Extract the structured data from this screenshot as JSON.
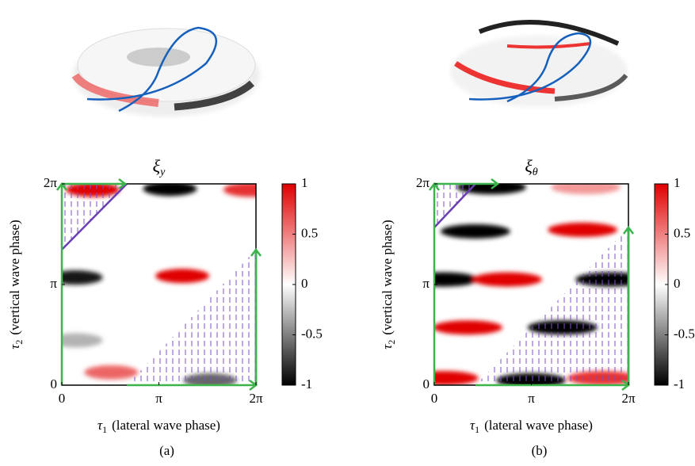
{
  "chart_data": [
    {
      "type": "heatmap",
      "title": {
        "symbol": "ξ",
        "subscript": "y"
      },
      "xlabel": {
        "symbol": "τ",
        "subscript": "1",
        "text": "(lateral wave phase)"
      },
      "ylabel": {
        "symbol": "τ",
        "subscript": "2",
        "text": "(vertical wave phase)"
      },
      "caption": "(a)",
      "xlim": [
        0,
        6.28319
      ],
      "ylim": [
        0,
        6.28319
      ],
      "xticks": [
        0,
        {
          "value": 3.14159,
          "label": "π"
        },
        {
          "value": 6.28319,
          "label": "2π"
        }
      ],
      "yticks": [
        0,
        {
          "value": 3.14159,
          "label": "π"
        },
        {
          "value": 6.28319,
          "label": "2π"
        }
      ],
      "clim": [
        -1,
        1
      ],
      "cticks": [
        -1,
        -0.5,
        0,
        0.5,
        1
      ],
      "x": [
        1.0,
        3.5,
        6.1,
        0.45,
        3.9,
        0.45,
        1.6,
        4.8
      ],
      "y": [
        6.1,
        6.13,
        6.1,
        3.36,
        3.41,
        1.4,
        0.4,
        0.15
      ],
      "values": [
        1,
        -1,
        0.8,
        -0.9,
        1,
        -0.3,
        0.6,
        -0.6
      ]
    },
    {
      "type": "heatmap",
      "title": {
        "symbol": "ξ",
        "subscript": "θ"
      },
      "xlabel": {
        "symbol": "τ",
        "subscript": "1",
        "text": "(lateral wave phase)"
      },
      "ylabel": {
        "symbol": "τ",
        "subscript": "2",
        "text": "(vertical wave phase)"
      },
      "caption": "(b)",
      "xlim": [
        0,
        6.28319
      ],
      "ylim": [
        0,
        6.28319
      ],
      "xticks": [
        0,
        {
          "value": 3.14159,
          "label": "π"
        },
        {
          "value": 6.28319,
          "label": "2π"
        }
      ],
      "yticks": [
        0,
        {
          "value": 3.14159,
          "label": "π"
        },
        {
          "value": 6.28319,
          "label": "2π"
        }
      ],
      "clim": [
        -1,
        1
      ],
      "cticks": [
        -1,
        -0.5,
        0,
        0.5,
        1
      ],
      "x": [
        1.85,
        4.9,
        1.33,
        4.8,
        0.3,
        2.36,
        5.7,
        1.08,
        4.15,
        0.3,
        3.13,
        5.44
      ],
      "y": [
        6.18,
        6.18,
        4.8,
        4.85,
        3.3,
        3.3,
        3.3,
        1.8,
        1.8,
        0.22,
        0.15,
        0.22
      ],
      "values": [
        -1,
        0.4,
        -1,
        1,
        -1,
        1,
        -1,
        1,
        -1,
        1,
        -1,
        0.8
      ]
    }
  ]
}
